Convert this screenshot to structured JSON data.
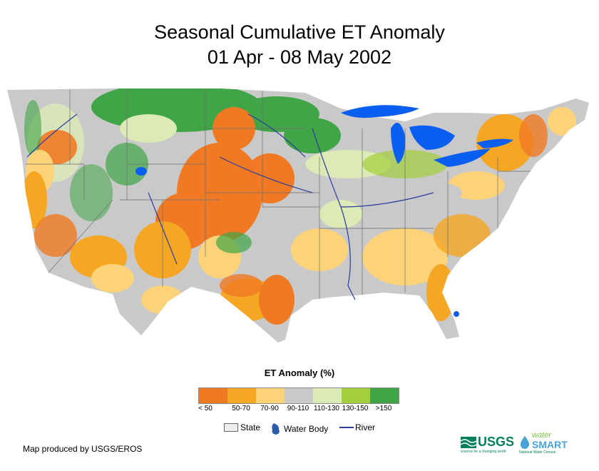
{
  "title": {
    "line1": "Seasonal Cumulative ET Anomaly",
    "line2": "01 Apr - 08 May 2002"
  },
  "legend": {
    "title": "ET Anomaly (%)",
    "classes": [
      {
        "label": "< 50",
        "color": "#f07a23"
      },
      {
        "label": "50-70",
        "color": "#f5a623"
      },
      {
        "label": "70-90",
        "color": "#fdd37a"
      },
      {
        "label": "90-110",
        "color": "#c9c9c9"
      },
      {
        "label": "110-130",
        "color": "#dcebb6"
      },
      {
        "label": "130-150",
        "color": "#a3cf3c"
      },
      {
        "label": ">150",
        "color": "#3fa546"
      }
    ],
    "keys": {
      "state": "State",
      "water_body": "Water Body",
      "river": "River"
    }
  },
  "credit": "Map produced by USGS/EROS",
  "logos": {
    "usgs": "USGS",
    "usgs_tagline": "science for a changing world",
    "water": "water",
    "smart": "SMART",
    "nwc": "National Water Census"
  },
  "colors": {
    "water": "#0a5ff0",
    "river": "#2a3c9e",
    "state_line": "#6e6e6e",
    "usgs_green": "#00805a"
  }
}
